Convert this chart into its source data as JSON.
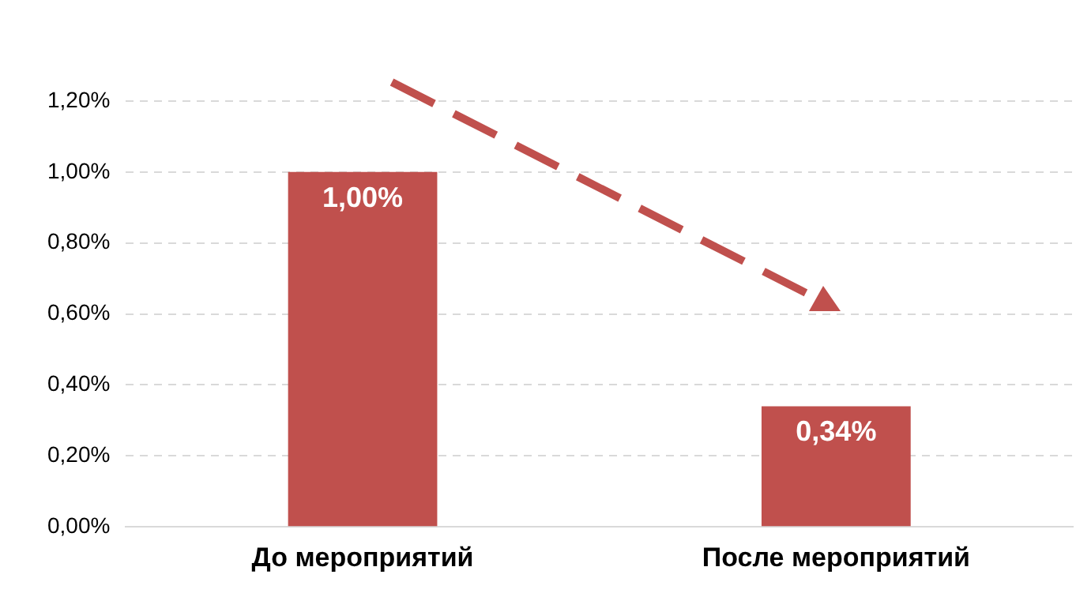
{
  "chart_data": {
    "type": "bar",
    "categories": [
      "До мероприятий",
      "После мероприятий"
    ],
    "values": [
      1,
      0.34
    ],
    "color": "#c0504d",
    "value_labels": [
      "1,00%",
      "0,34%"
    ],
    "ylim": [
      0,
      1.2
    ],
    "yticks": [
      {
        "value": 0,
        "label": "0,00%"
      },
      {
        "value": 0.2,
        "label": "0,20%"
      },
      {
        "value": 0.4,
        "label": "0,40%"
      },
      {
        "value": 0.6,
        "label": "0,60%"
      },
      {
        "value": 0.8,
        "label": "0,80%"
      },
      {
        "value": 1,
        "label": "1,00%"
      },
      {
        "value": 1.2,
        "label": "1,20%"
      }
    ],
    "grid": "y",
    "legend": false
  }
}
